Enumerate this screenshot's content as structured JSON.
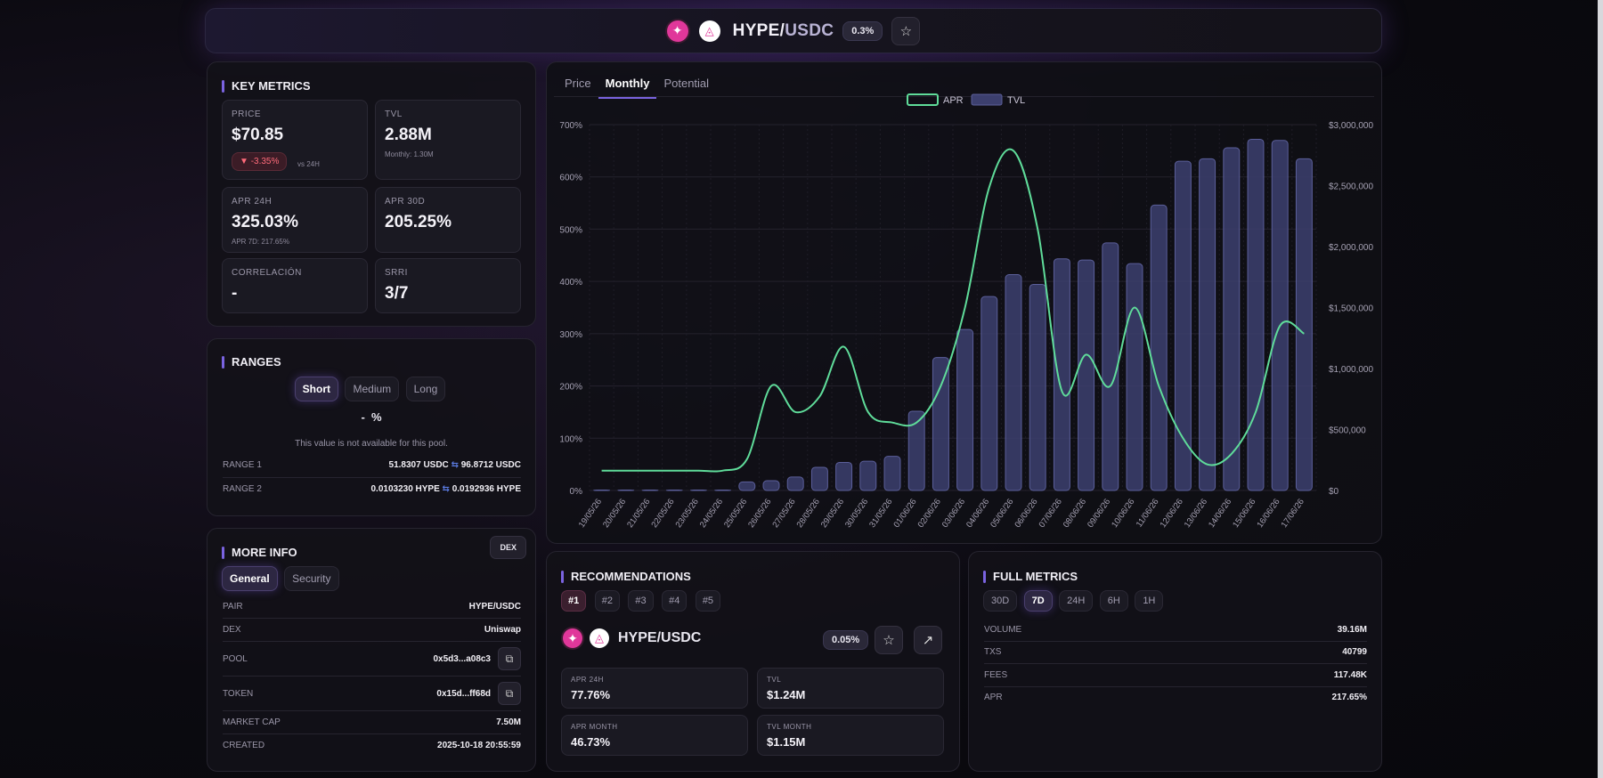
{
  "header": {
    "pair_base": "HYPE/",
    "pair_quote": "USDC",
    "fee": "0.3%"
  },
  "key_metrics": {
    "title": "KEY METRICS",
    "price_label": "PRICE",
    "price": "$70.85",
    "price_change": "-3.35%",
    "vs": "vs 24H",
    "tvl_label": "TVL",
    "tvl": "2.88M",
    "tvl_sub": "Monthly: 1.30M",
    "apr24_label": "APR 24H",
    "apr24": "325.03%",
    "apr24_sub": "APR 7D: 217.65%",
    "apr30_label": "APR 30D",
    "apr30": "205.25%",
    "corr_label": "CORRELACIÓN",
    "corr": "-",
    "srri_label": "SRRI",
    "srri": "3/7"
  },
  "ranges": {
    "title": "RANGES",
    "options": [
      "Short",
      "Medium",
      "Long"
    ],
    "value": "-  %",
    "note": "This value is not available for this pool.",
    "range1_label": "RANGE 1",
    "range1_low": "51.8307 USDC",
    "range1_high": "96.8712 USDC",
    "range2_label": "RANGE 2",
    "range2_low": "0.0103230 HYPE",
    "range2_high": "0.0192936 HYPE"
  },
  "more_info": {
    "title": "MORE INFO",
    "dex_button": "DEX",
    "tabs": [
      "General",
      "Security"
    ],
    "rows": [
      {
        "k": "PAIR",
        "v": "HYPE/USDC"
      },
      {
        "k": "DEX",
        "v": "Uniswap"
      },
      {
        "k": "POOL",
        "v": "0x5d3...a08c3"
      },
      {
        "k": "TOKEN",
        "v": "0x15d...ff68d"
      },
      {
        "k": "MARKET CAP",
        "v": "7.50M"
      },
      {
        "k": "CREATED",
        "v": "2025-10-18 20:55:59"
      }
    ]
  },
  "chart_tabs": [
    "Price",
    "Monthly",
    "Potential"
  ],
  "chart_data": {
    "type": "bar",
    "legend": [
      "APR",
      "TVL"
    ],
    "legend_position": "top-center",
    "categories": [
      "19/05/26",
      "20/05/26",
      "21/05/26",
      "22/05/26",
      "23/05/26",
      "24/05/26",
      "25/05/26",
      "26/05/26",
      "27/05/26",
      "28/05/26",
      "29/05/26",
      "30/05/26",
      "31/05/26",
      "01/06/26",
      "02/06/26",
      "03/06/26",
      "04/06/26",
      "05/06/26",
      "06/06/26",
      "07/06/26",
      "08/06/26",
      "09/06/26",
      "10/06/26",
      "11/06/26",
      "12/06/26",
      "13/06/26",
      "14/06/26",
      "15/06/26",
      "16/06/26",
      "17/06/26"
    ],
    "series": [
      {
        "name": "TVL",
        "axis": "right",
        "values": [
          0,
          0,
          0,
          0,
          0,
          0,
          70000,
          80000,
          110000,
          190000,
          230000,
          240000,
          280000,
          650000,
          1090000,
          1320000,
          1590000,
          1770000,
          1690000,
          1900000,
          1890000,
          2030000,
          1860000,
          2340000,
          2700000,
          2720000,
          2810000,
          2880000,
          2870000,
          2720000
        ]
      },
      {
        "name": "APR",
        "axis": "left",
        "values": [
          38,
          38,
          38,
          38,
          38,
          38,
          60,
          200,
          150,
          180,
          275,
          150,
          130,
          130,
          200,
          350,
          580,
          650,
          500,
          190,
          260,
          200,
          350,
          200,
          100,
          50,
          70,
          150,
          315,
          300
        ]
      }
    ],
    "yleft_ticks": [
      "0%",
      "100%",
      "200%",
      "300%",
      "400%",
      "500%",
      "600%",
      "700%"
    ],
    "yright_ticks": [
      "$0",
      "$500,000",
      "$1,000,000",
      "$1,500,000",
      "$2,000,000",
      "$2,500,000",
      "$3,000,000"
    ],
    "ylim_left": [
      0,
      700
    ],
    "ylim_right": [
      0,
      3000000
    ],
    "grid": true,
    "colors": {
      "apr": "#5fdc9a",
      "tvl_fill": "#3c3f6e",
      "tvl_stroke": "#5b5f9a"
    }
  },
  "recommendations": {
    "title": "RECOMMENDATIONS",
    "ranks": [
      "#1",
      "#2",
      "#3",
      "#4",
      "#5"
    ],
    "pair": "HYPE/USDC",
    "fee": "0.05%",
    "apr24_label": "APR 24H",
    "apr24": "77.76%",
    "tvl_label": "TVL",
    "tvl": "$1.24M",
    "aprm_label": "APR MONTH",
    "aprm": "46.73%",
    "tvlm_label": "TVL MONTH",
    "tvlm": "$1.15M"
  },
  "full_metrics": {
    "title": "FULL METRICS",
    "periods": [
      "30D",
      "7D",
      "24H",
      "6H",
      "1H"
    ],
    "rows": [
      {
        "k": "VOLUME",
        "v": "39.16M"
      },
      {
        "k": "TXS",
        "v": "40799"
      },
      {
        "k": "FEES",
        "v": "117.48K"
      },
      {
        "k": "APR",
        "v": "217.65%"
      }
    ]
  }
}
